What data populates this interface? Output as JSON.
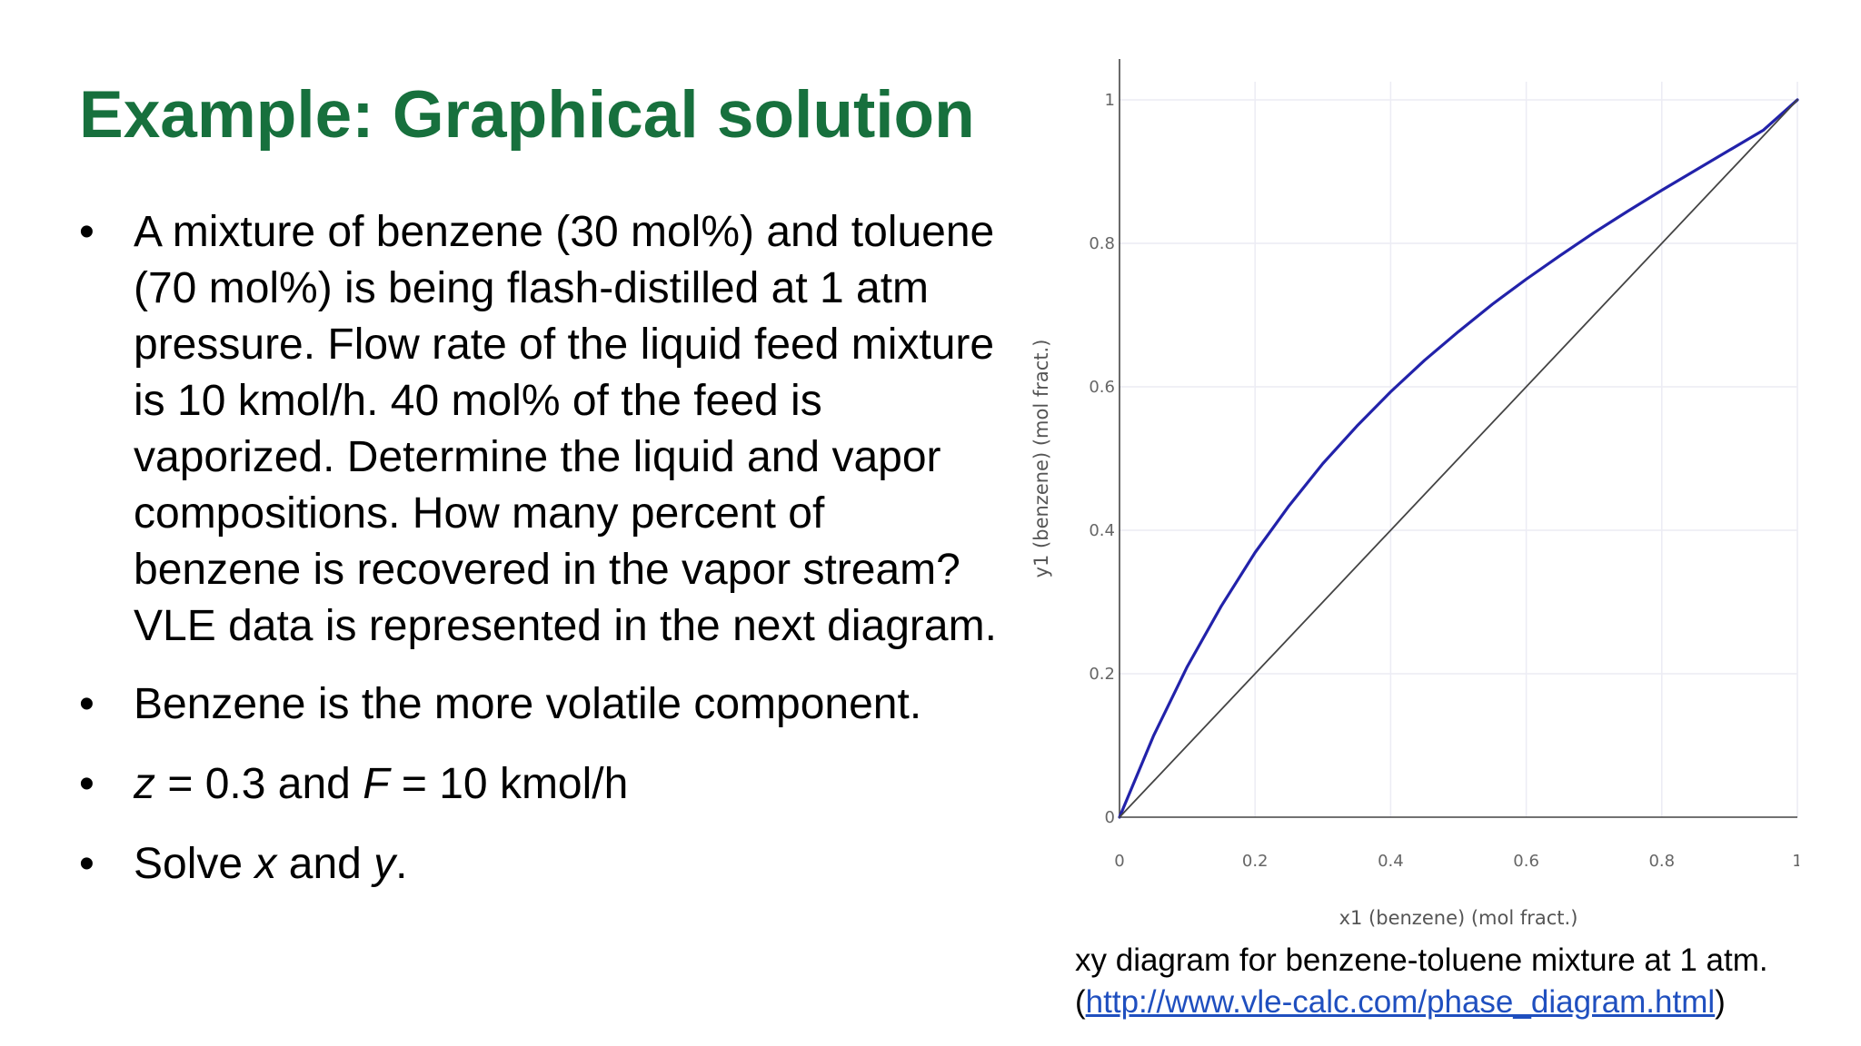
{
  "slide": {
    "title": "Example: Graphical solution",
    "bullet1": "A mixture of benzene (30 mol%) and toluene (70 mol%) is being flash-distilled at 1 atm pressure. Flow rate of the liquid feed mixture is 10 kmol/h. 40 mol% of the feed is vaporized. Determine the liquid and vapor compositions. How many percent of benzene is recovered in the vapor stream? VLE data is represented in the next diagram.",
    "bullet2": "Benzene is the more volatile component.",
    "bullet3": {
      "z_var": "z",
      "z_text": " = 0.3 and ",
      "f_var": "F",
      "f_text": " = 10 kmol/h"
    },
    "bullet4": {
      "pre": "Solve ",
      "x_var": "x",
      "mid": " and ",
      "y_var": "y",
      "post": "."
    },
    "bullet_symbol": "•",
    "caption_line1": "xy diagram for benzene-toluene mixture at 1 atm.",
    "caption_open": "(",
    "caption_link": "http://www.vle-calc.com/phase_diagram.html",
    "caption_close": ")"
  },
  "chart_data": {
    "type": "line",
    "xlabel": "x1 (benzene) (mol fract.)",
    "ylabel": "y1 (benzene) (mol fract.)",
    "xlim": [
      0,
      1
    ],
    "ylim": [
      0,
      1
    ],
    "xticks": [
      "0",
      "0.2",
      "0.4",
      "0.6",
      "0.8",
      "1"
    ],
    "yticks": [
      "0",
      "0.2",
      "0.4",
      "0.6",
      "0.8",
      "1"
    ],
    "grid": true,
    "series": [
      {
        "color": "#2222aa",
        "x": [
          0,
          0.05,
          0.1,
          0.15,
          0.2,
          0.25,
          0.3,
          0.35,
          0.4,
          0.45,
          0.5,
          0.55,
          0.6,
          0.65,
          0.7,
          0.75,
          0.8,
          0.85,
          0.9,
          0.95,
          1
        ],
        "y": [
          0,
          0.113,
          0.21,
          0.294,
          0.369,
          0.434,
          0.493,
          0.545,
          0.593,
          0.637,
          0.677,
          0.715,
          0.75,
          0.783,
          0.815,
          0.845,
          0.874,
          0.902,
          0.93,
          0.958,
          1
        ]
      },
      {
        "color": "#444444",
        "x": [
          0,
          1
        ],
        "y": [
          0,
          1
        ]
      }
    ]
  }
}
